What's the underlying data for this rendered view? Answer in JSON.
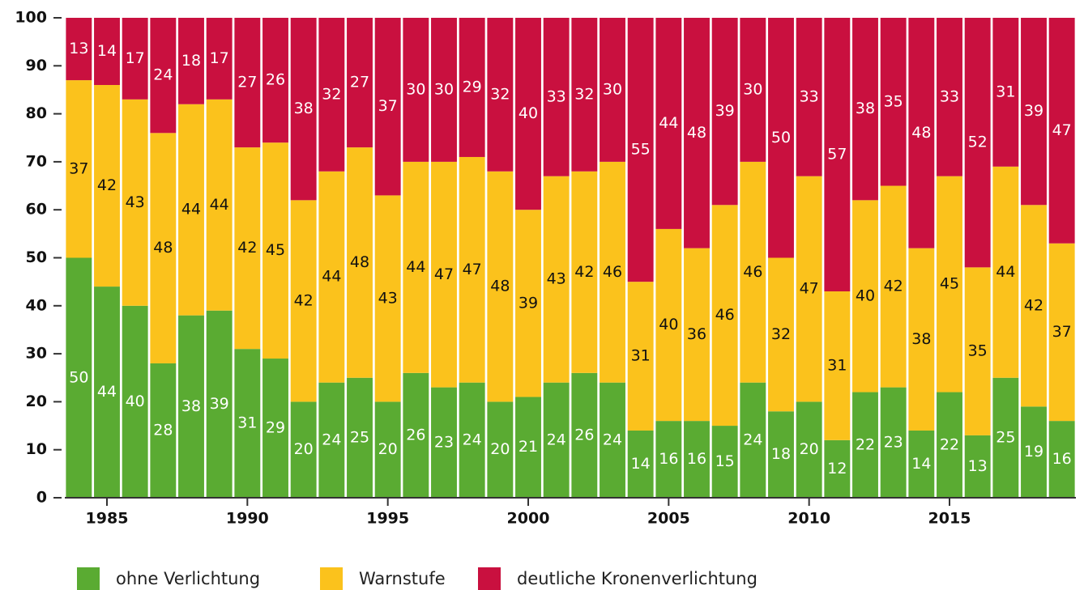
{
  "chart_data": {
    "type": "stacked-bar",
    "x": [
      1984,
      1985,
      1986,
      1987,
      1988,
      1989,
      1990,
      1991,
      1992,
      1993,
      1994,
      1995,
      1996,
      1997,
      1998,
      1999,
      2000,
      2001,
      2002,
      2003,
      2004,
      2005,
      2006,
      2007,
      2008,
      2009,
      2010,
      2011,
      2012,
      2013,
      2014,
      2015,
      2016,
      2017,
      2018,
      2019
    ],
    "series": [
      {
        "name": "ohne Verlichtung",
        "color": "#5aab32",
        "values": [
          50,
          44,
          40,
          28,
          38,
          39,
          31,
          29,
          20,
          24,
          25,
          20,
          26,
          23,
          24,
          20,
          21,
          24,
          26,
          24,
          14,
          16,
          16,
          15,
          24,
          18,
          20,
          12,
          22,
          23,
          14,
          22,
          13,
          25,
          19,
          16
        ]
      },
      {
        "name": "Warnstufe",
        "color": "#fbc21c",
        "values": [
          37,
          42,
          43,
          48,
          44,
          44,
          42,
          45,
          42,
          44,
          48,
          43,
          44,
          47,
          47,
          48,
          39,
          43,
          42,
          46,
          31,
          40,
          36,
          46,
          46,
          32,
          47,
          31,
          40,
          42,
          38,
          45,
          35,
          44,
          42,
          37
        ]
      },
      {
        "name": "deutliche Kronenverlichtung",
        "color": "#c9103f",
        "values": [
          13,
          14,
          17,
          24,
          18,
          17,
          27,
          26,
          38,
          32,
          27,
          37,
          30,
          30,
          29,
          32,
          40,
          33,
          32,
          30,
          55,
          44,
          48,
          39,
          30,
          50,
          33,
          57,
          38,
          35,
          48,
          33,
          52,
          31,
          39,
          47
        ]
      }
    ],
    "xlim": [
      1983.5,
      2019.5
    ],
    "xticks": [
      1985,
      1990,
      1995,
      2000,
      2005,
      2010,
      2015
    ],
    "ylim": [
      0,
      100
    ],
    "yticks": [
      0,
      10,
      20,
      30,
      40,
      50,
      60,
      70,
      80,
      90,
      100
    ],
    "grid": false,
    "legend": "bottom"
  }
}
